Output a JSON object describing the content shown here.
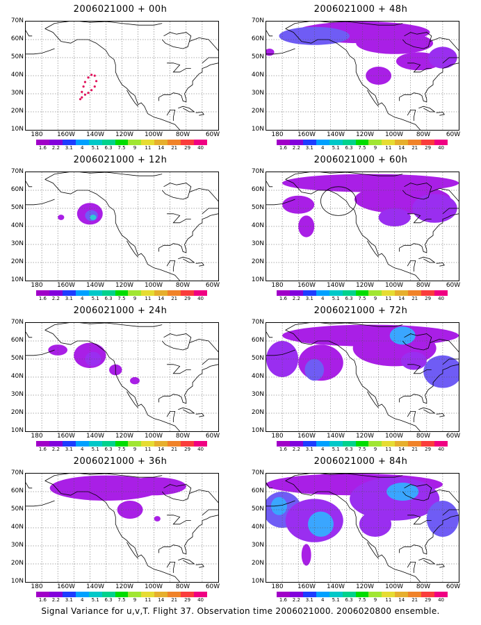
{
  "panels": [
    {
      "title": "2006021000 + 00h"
    },
    {
      "title": "2006021000 + 48h"
    },
    {
      "title": "2006021000 + 12h"
    },
    {
      "title": "2006021000 + 60h"
    },
    {
      "title": "2006021000 + 24h"
    },
    {
      "title": "2006021000 + 72h"
    },
    {
      "title": "2006021000 + 36h"
    },
    {
      "title": "2006021000 + 84h"
    }
  ],
  "lat_labels": [
    "70N",
    "60N",
    "50N",
    "40N",
    "30N",
    "20N",
    "10N"
  ],
  "lon_labels": [
    "180",
    "160W",
    "140W",
    "120W",
    "100W",
    "80W",
    "60W"
  ],
  "colorbar": {
    "colors": [
      "#a000c8",
      "#8200dc",
      "#1e3cff",
      "#00a0ff",
      "#00c8c8",
      "#00d28c",
      "#00dc00",
      "#a0e632",
      "#e6dc32",
      "#e6af2d",
      "#f08228",
      "#fa3c3c",
      "#f00082"
    ],
    "labels": [
      "1.6",
      "2.2",
      "3.1",
      "4",
      "5.1",
      "6.3",
      "7.5",
      "9",
      "11",
      "14",
      "21",
      "29",
      "40"
    ]
  },
  "caption": "Signal Variance for u,v,T. Flight 37. Observation time 2006021000. 2006020800 ensemble."
}
